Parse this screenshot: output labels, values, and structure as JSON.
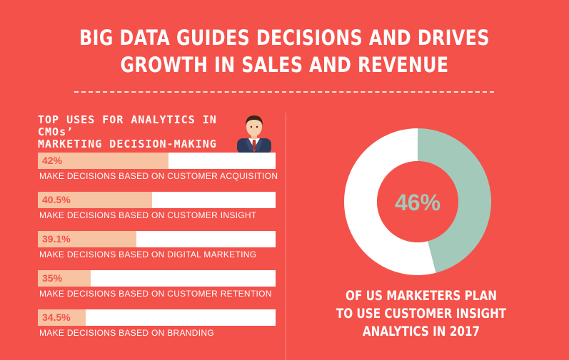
{
  "title": {
    "line1": "BIG DATA GUIDES DECISIONS AND DRIVES",
    "line2": "GROWTH IN SALES AND REVENUE"
  },
  "left_panel": {
    "heading_line1": "TOP USES FOR ANALYTICS IN CMOs’",
    "heading_line2": "MARKETING DECISION-MAKING",
    "icon": "businessman-icon"
  },
  "right_panel": {
    "caption_line1": "OF US MARKETERS PLAN",
    "caption_line2": "TO USE CUSTOMER INSIGHT",
    "caption_line3": "ANALYTICS IN 2017"
  },
  "colors": {
    "background": "#f4514a",
    "bar_fill": "#f8c3a2",
    "bar_track": "#ffffff",
    "donut_highlight": "#a3c9bb",
    "donut_rest": "#ffffff"
  },
  "chart_data": [
    {
      "type": "bar",
      "orientation": "horizontal",
      "categories": [
        "MAKE DECISIONS BASED ON CUSTOMER ACQUISITION",
        "MAKE DECISIONS BASED ON CUSTOMER INSIGHT",
        "MAKE DECISIONS BASED ON DIGITAL MARKETING",
        "MAKE DECISIONS BASED ON CUSTOMER RETENTION",
        "MAKE DECISIONS BASED ON BRANDING"
      ],
      "values": [
        42,
        40.5,
        39.1,
        35,
        34.5
      ],
      "value_labels": [
        "42%",
        "40.5%",
        "39.1%",
        "35%",
        "34.5%"
      ],
      "title": "TOP USES FOR ANALYTICS IN CMOs’ MARKETING DECISION-MAKING",
      "xlabel": "",
      "ylabel": ""
    },
    {
      "type": "pie",
      "style": "donut",
      "categories": [
        "",
        ""
      ],
      "values": [
        46,
        54
      ],
      "center_label": "46%",
      "title": ""
    }
  ]
}
